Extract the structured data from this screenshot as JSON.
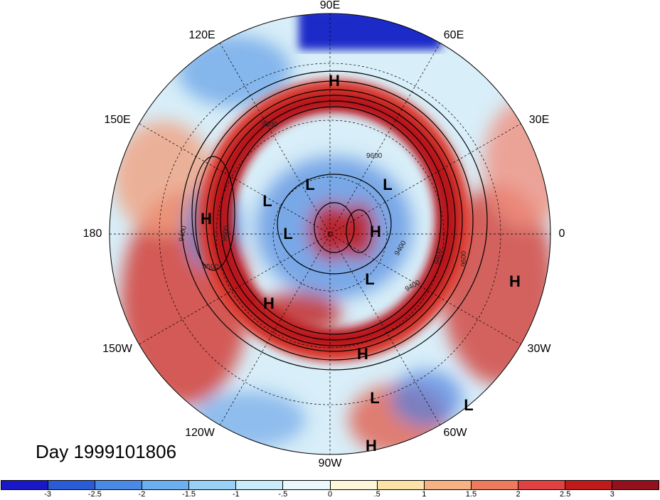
{
  "title_label": "Day 1999101806",
  "longitude_labels": [
    {
      "id": "lon-90e",
      "text": "90E"
    },
    {
      "id": "lon-60e",
      "text": "60E"
    },
    {
      "id": "lon-30e",
      "text": "30E"
    },
    {
      "id": "lon-0",
      "text": "0"
    },
    {
      "id": "lon-30w",
      "text": "30W"
    },
    {
      "id": "lon-60w",
      "text": "60W"
    },
    {
      "id": "lon-90w",
      "text": "90W"
    },
    {
      "id": "lon-120w",
      "text": "120W"
    },
    {
      "id": "lon-150w",
      "text": "150W"
    },
    {
      "id": "lon-180",
      "text": "180"
    },
    {
      "id": "lon-150e",
      "text": "150E"
    },
    {
      "id": "lon-120e",
      "text": "120E"
    }
  ],
  "pressure_centers": [
    "H",
    "L",
    "L",
    "L",
    "H",
    "L",
    "H",
    "L",
    "H",
    "H",
    "L",
    "H",
    "L",
    "H"
  ],
  "contour_labels": [
    "9500",
    "9600",
    "9600",
    "9400",
    "9400",
    "9400",
    "9600",
    "9500",
    "9400"
  ],
  "colorbar": {
    "ticks": [
      "-3",
      "-2.5",
      "-2",
      "-1.5",
      "-1",
      "-.5",
      "0",
      ".5",
      "1",
      "1.5",
      "2",
      "2.5",
      "3"
    ],
    "colors": [
      "#1818c8",
      "#2a5cd8",
      "#4a8ae6",
      "#6cb0f0",
      "#98d0f6",
      "#c8ecfa",
      "#eaf7fc",
      "#fdf6d8",
      "#fbe3a8",
      "#f6b283",
      "#ef7a5e",
      "#e04242",
      "#c01a1a",
      "#94101c"
    ]
  }
}
